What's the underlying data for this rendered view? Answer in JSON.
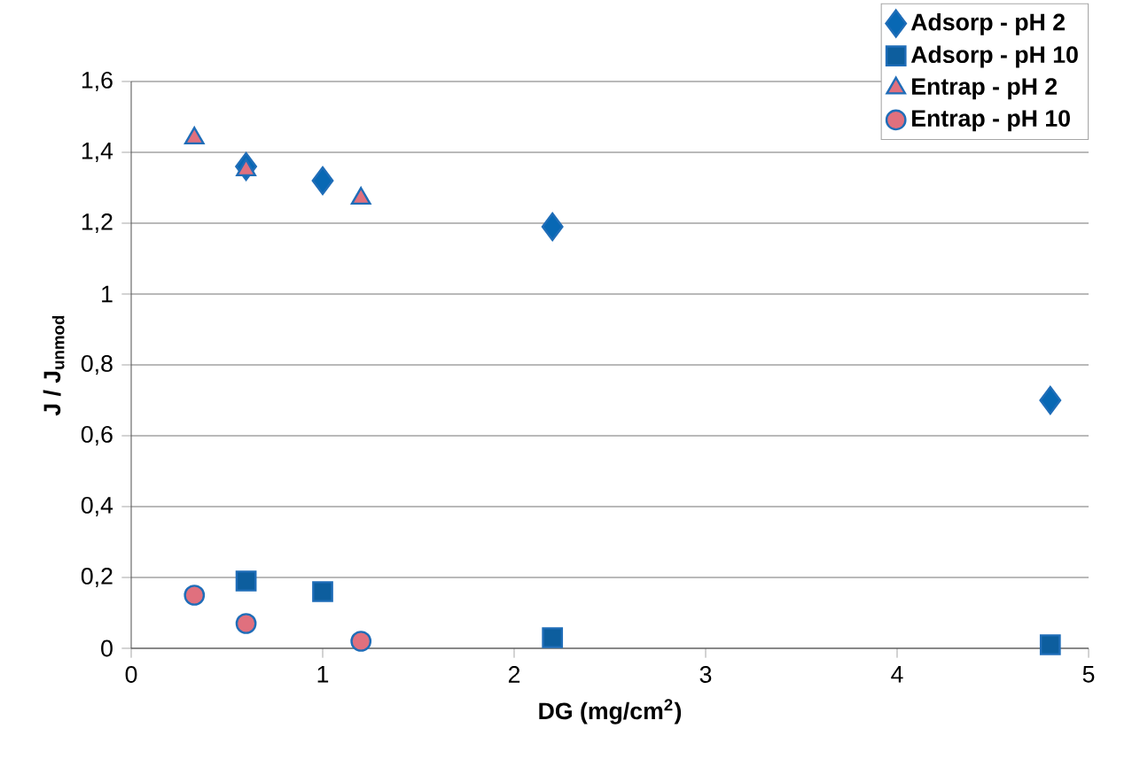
{
  "chart_data": {
    "type": "scatter",
    "xlabel": "DG (mg/cm$^{2}$)",
    "ylabel": "J / J$_{unmod}$",
    "xlim": [
      0,
      5
    ],
    "ylim": [
      0,
      1.6
    ],
    "xticks": [
      0,
      1,
      2,
      3,
      4,
      5
    ],
    "yticks": [
      0,
      {
        "value": 0.2,
        "label": "0,2"
      },
      {
        "value": 0.4,
        "label": "0,4"
      },
      {
        "value": 0.6,
        "label": "0,6"
      },
      {
        "value": 0.8,
        "label": "0,8"
      },
      1,
      {
        "value": 1.2,
        "label": "1,2"
      },
      {
        "value": 1.4,
        "label": "1,4"
      },
      {
        "value": 1.6,
        "label": "1,6"
      }
    ],
    "grid": "y",
    "legend": "top right",
    "series": [
      {
        "name": "Adsorp - pH 2",
        "color": "#0868b4",
        "marker": "diamond",
        "x": [
          0.6,
          1.0,
          2.2,
          4.8
        ],
        "values": [
          1.36,
          1.32,
          1.19,
          0.7
        ]
      },
      {
        "name": "Adsorp - pH 10",
        "color": "#0d5e9e",
        "marker": "square",
        "x": [
          0.6,
          1.0,
          2.2,
          4.8
        ],
        "values": [
          0.19,
          0.16,
          0.03,
          0.01
        ]
      },
      {
        "name": "Entrap - pH 2",
        "color": "#e0707e",
        "marker": "triangle",
        "x": [
          0.33,
          0.6,
          1.2
        ],
        "values": [
          1.44,
          1.35,
          1.27
        ]
      },
      {
        "name": "Entrap - pH 10",
        "color": "#e0707e",
        "marker": "circle",
        "x": [
          0.33,
          0.6,
          1.2
        ],
        "values": [
          0.15,
          0.07,
          0.02
        ]
      }
    ]
  }
}
